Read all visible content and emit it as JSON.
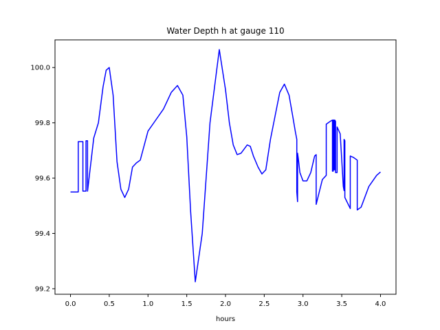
{
  "chart_data": {
    "type": "line",
    "title": "Water Depth h at gauge 110",
    "xlabel": "hours",
    "ylabel": "",
    "xlim": [
      -0.2,
      4.2
    ],
    "ylim": [
      99.18,
      100.1
    ],
    "xticks": [
      0.0,
      0.5,
      1.0,
      1.5,
      2.0,
      2.5,
      3.0,
      3.5,
      4.0
    ],
    "xtick_labels": [
      "0.0",
      "0.5",
      "1.0",
      "1.5",
      "2.0",
      "2.5",
      "3.0",
      "3.5",
      "4.0"
    ],
    "yticks": [
      99.2,
      99.4,
      99.6,
      99.8,
      100.0
    ],
    "ytick_labels": [
      "99.2",
      "99.4",
      "99.6",
      "99.8",
      "100.0"
    ],
    "grid": false,
    "legend": "none",
    "series": [
      {
        "color": "#0000ff",
        "x": [
          0.0,
          0.1,
          0.1,
          0.16,
          0.16,
          0.2,
          0.2,
          0.22,
          0.22,
          0.3,
          0.36,
          0.42,
          0.46,
          0.5,
          0.55,
          0.6,
          0.65,
          0.7,
          0.75,
          0.8,
          0.85,
          0.9,
          1.0,
          1.1,
          1.2,
          1.3,
          1.38,
          1.45,
          1.5,
          1.55,
          1.61,
          1.7,
          1.8,
          1.92,
          2.0,
          2.05,
          2.1,
          2.15,
          2.2,
          2.28,
          2.32,
          2.36,
          2.42,
          2.47,
          2.52,
          2.58,
          2.7,
          2.76,
          2.82,
          2.87,
          2.9,
          2.92,
          2.92,
          2.93,
          2.93,
          2.94,
          2.96,
          3.0,
          3.05,
          3.1,
          3.15,
          3.17,
          3.17,
          3.25,
          3.3,
          3.3,
          3.35,
          3.38,
          3.38,
          3.39,
          3.39,
          3.4,
          3.4,
          3.41,
          3.41,
          3.42,
          3.42,
          3.44,
          3.44,
          3.48,
          3.52,
          3.53,
          3.53,
          3.54,
          3.54,
          3.61,
          3.61,
          3.65,
          3.7,
          3.7,
          3.75,
          3.85,
          3.95,
          4.0
        ],
        "y": [
          99.55,
          99.55,
          99.732,
          99.732,
          99.553,
          99.553,
          99.735,
          99.735,
          99.553,
          99.745,
          99.8,
          99.93,
          99.99,
          100.0,
          99.9,
          99.66,
          99.56,
          99.53,
          99.56,
          99.64,
          99.655,
          99.665,
          99.77,
          99.81,
          99.85,
          99.91,
          99.935,
          99.9,
          99.75,
          99.48,
          99.225,
          99.4,
          99.8,
          100.065,
          99.92,
          99.8,
          99.72,
          99.685,
          99.69,
          99.72,
          99.715,
          99.68,
          99.64,
          99.615,
          99.63,
          99.74,
          99.91,
          99.94,
          99.9,
          99.82,
          99.77,
          99.74,
          99.55,
          99.515,
          99.69,
          99.67,
          99.62,
          99.59,
          99.59,
          99.62,
          99.68,
          99.685,
          99.505,
          99.595,
          99.61,
          99.795,
          99.805,
          99.81,
          99.625,
          99.625,
          99.81,
          99.81,
          99.63,
          99.63,
          99.81,
          99.805,
          99.62,
          99.62,
          99.785,
          99.76,
          99.57,
          99.555,
          99.74,
          99.735,
          99.53,
          99.49,
          99.68,
          99.675,
          99.665,
          99.485,
          99.495,
          99.57,
          99.61,
          99.622
        ]
      }
    ]
  }
}
